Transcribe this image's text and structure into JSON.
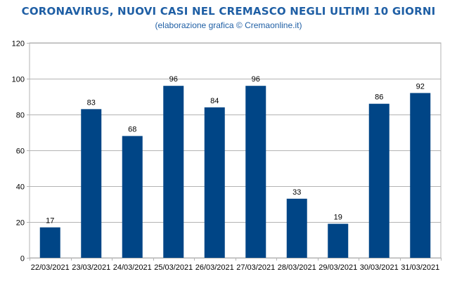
{
  "chart_data": {
    "type": "bar",
    "title": "CORONAVIRUS, NUOVI CASI NEL CREMASCO NEGLI ULTIMI 10 GIORNI",
    "subtitle": "(elaborazione grafica © Cremaonline.it)",
    "categories": [
      "22/03/2021",
      "23/03/2021",
      "24/03/2021",
      "25/03/2021",
      "26/03/2021",
      "27/03/2021",
      "28/03/2021",
      "29/03/2021",
      "30/03/2021",
      "31/03/2021"
    ],
    "values": [
      17,
      83,
      68,
      96,
      84,
      96,
      33,
      19,
      86,
      92
    ],
    "ylim": [
      0,
      120
    ],
    "yticks": [
      0,
      20,
      40,
      60,
      80,
      100,
      120
    ],
    "xlabel": "",
    "ylabel": "",
    "grid": true,
    "bar_color": "#004586",
    "title_color": "#1f5fa5"
  }
}
